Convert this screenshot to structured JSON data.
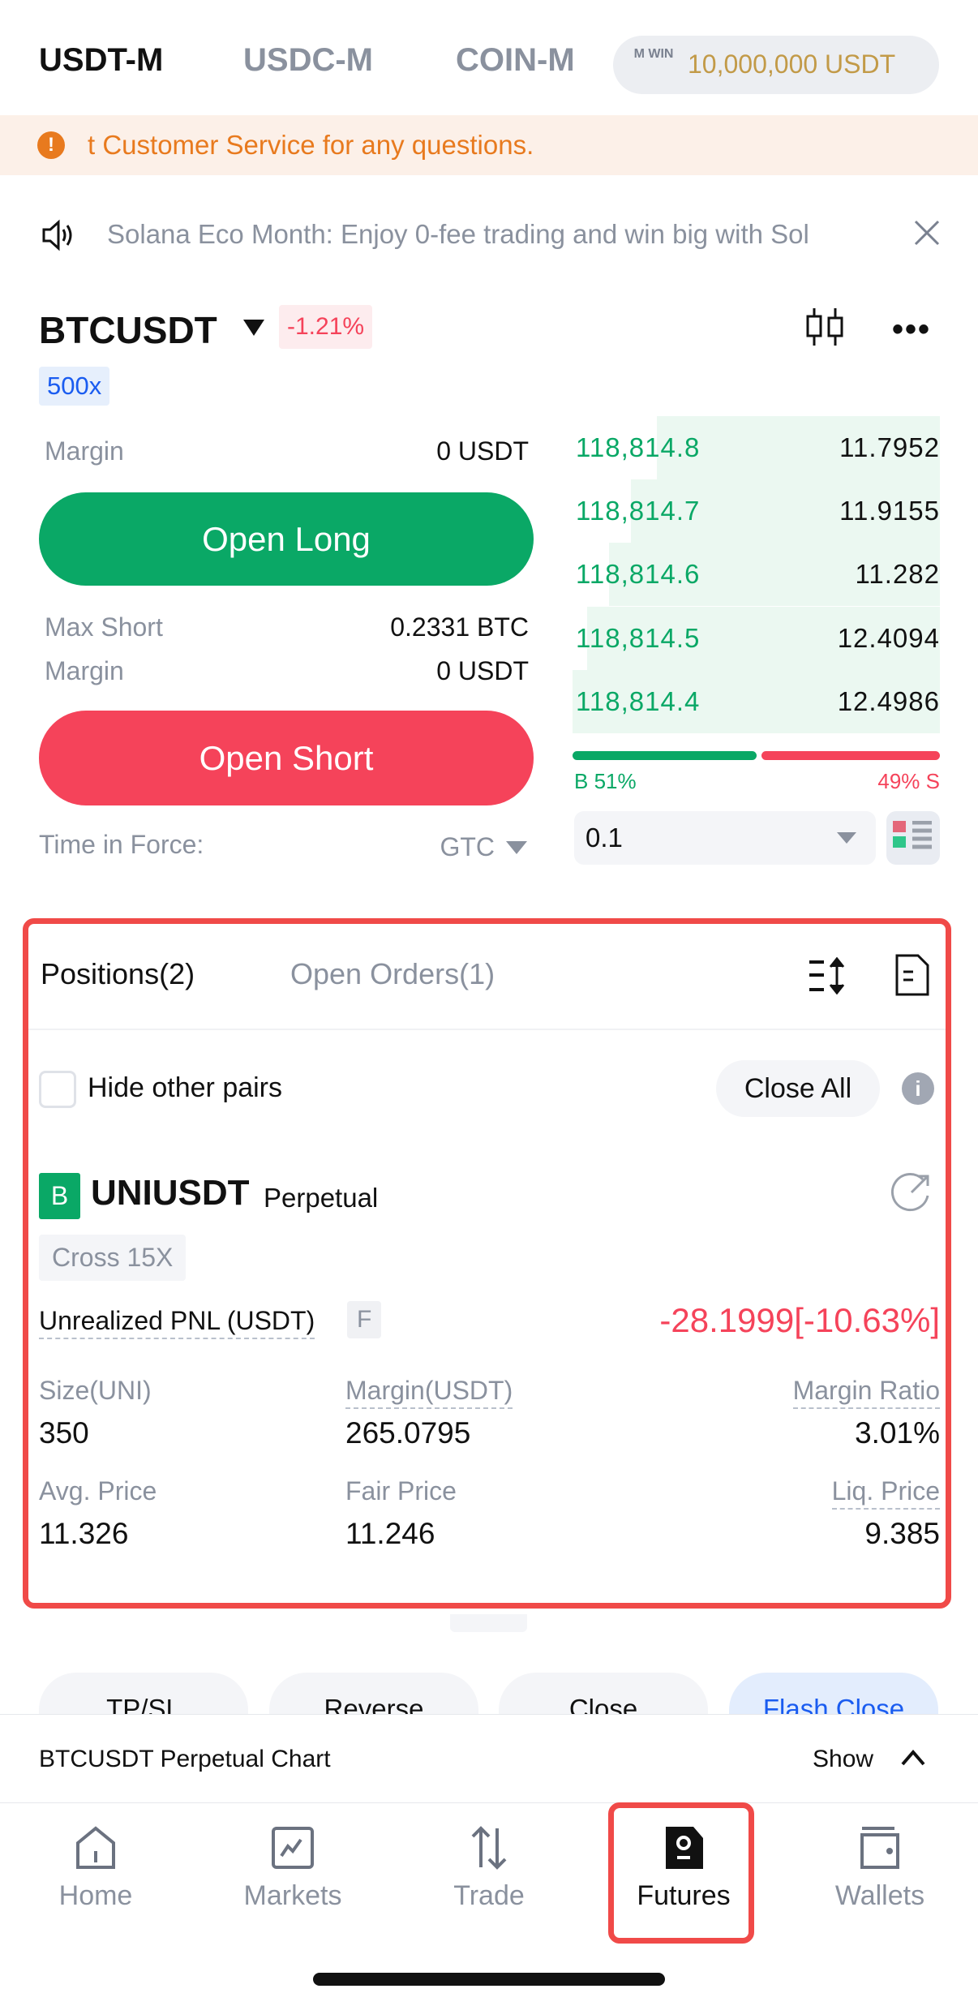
{
  "top_tabs": [
    {
      "label": "USDT-M",
      "active": true
    },
    {
      "label": "USDC-M"
    },
    {
      "label": "COIN-M"
    }
  ],
  "balance_badge": {
    "logo": "M WIN",
    "amount": "10,000,000 USDT"
  },
  "warning_banner": {
    "icon": "exclamation-circle-icon",
    "text": "t Customer Service for any questions."
  },
  "announcement": {
    "icon": "speaker-icon",
    "text": "Solana Eco Month: Enjoy 0-fee trading and win big with Sol",
    "close_icon": "close-icon"
  },
  "pair": {
    "symbol": "BTCUSDT",
    "change": "-1.21%",
    "leverage": "500x"
  },
  "order_form": {
    "margin_label": "Margin",
    "margin_long": "0 USDT",
    "open_long": "Open Long",
    "max_short_label": "Max Short",
    "max_short": "0.2331 BTC",
    "margin_label2": "Margin",
    "margin_short": "0 USDT",
    "open_short": "Open Short",
    "tif_label": "Time in Force:",
    "tif_value": "GTC"
  },
  "order_book": {
    "rows": [
      {
        "price": "118,814.8",
        "qty": "11.7952",
        "depth": 0.77
      },
      {
        "price": "118,814.7",
        "qty": "11.9155",
        "depth": 0.84
      },
      {
        "price": "118,814.6",
        "qty": "11.282",
        "depth": 0.9
      },
      {
        "price": "118,814.5",
        "qty": "12.4094",
        "depth": 0.96
      },
      {
        "price": "118,814.4",
        "qty": "12.4986",
        "depth": 1.0
      }
    ],
    "buy_pct": "B 51%",
    "sell_pct": "49% S",
    "buy_ratio": 51,
    "precision": "0.1"
  },
  "positions": {
    "tab_positions": "Positions(2)",
    "tab_orders": "Open Orders(1)",
    "hide_other": "Hide other pairs",
    "close_all": "Close All",
    "item": {
      "side": "B",
      "symbol": "UNIUSDT",
      "type": "Perpetual",
      "mode": "Cross 15X",
      "pnl_label": "Unrealized PNL (USDT)",
      "pnl_flag": "F",
      "pnl": "-28.1999[-10.63%]",
      "size_label": "Size(UNI)",
      "size": "350",
      "margin_label": "Margin(USDT)",
      "margin": "265.0795",
      "ratio_label": "Margin Ratio",
      "ratio": "3.01%",
      "avg_label": "Avg. Price",
      "avg": "11.326",
      "fair_label": "Fair Price",
      "fair": "11.246",
      "liq_label": "Liq. Price",
      "liq": "9.385"
    }
  },
  "actions": [
    "TP/SL",
    "Reverse",
    "Close",
    "Flash Close"
  ],
  "chart_bar": {
    "title": "BTCUSDT Perpetual Chart",
    "toggle": "Show"
  },
  "nav": [
    {
      "label": "Home"
    },
    {
      "label": "Markets"
    },
    {
      "label": "Trade"
    },
    {
      "label": "Futures",
      "active": true
    },
    {
      "label": "Wallets"
    }
  ],
  "colors": {
    "green": "#0aa866",
    "red": "#f5435a",
    "orange": "#e87a1e",
    "highlight": "#f04a48"
  }
}
